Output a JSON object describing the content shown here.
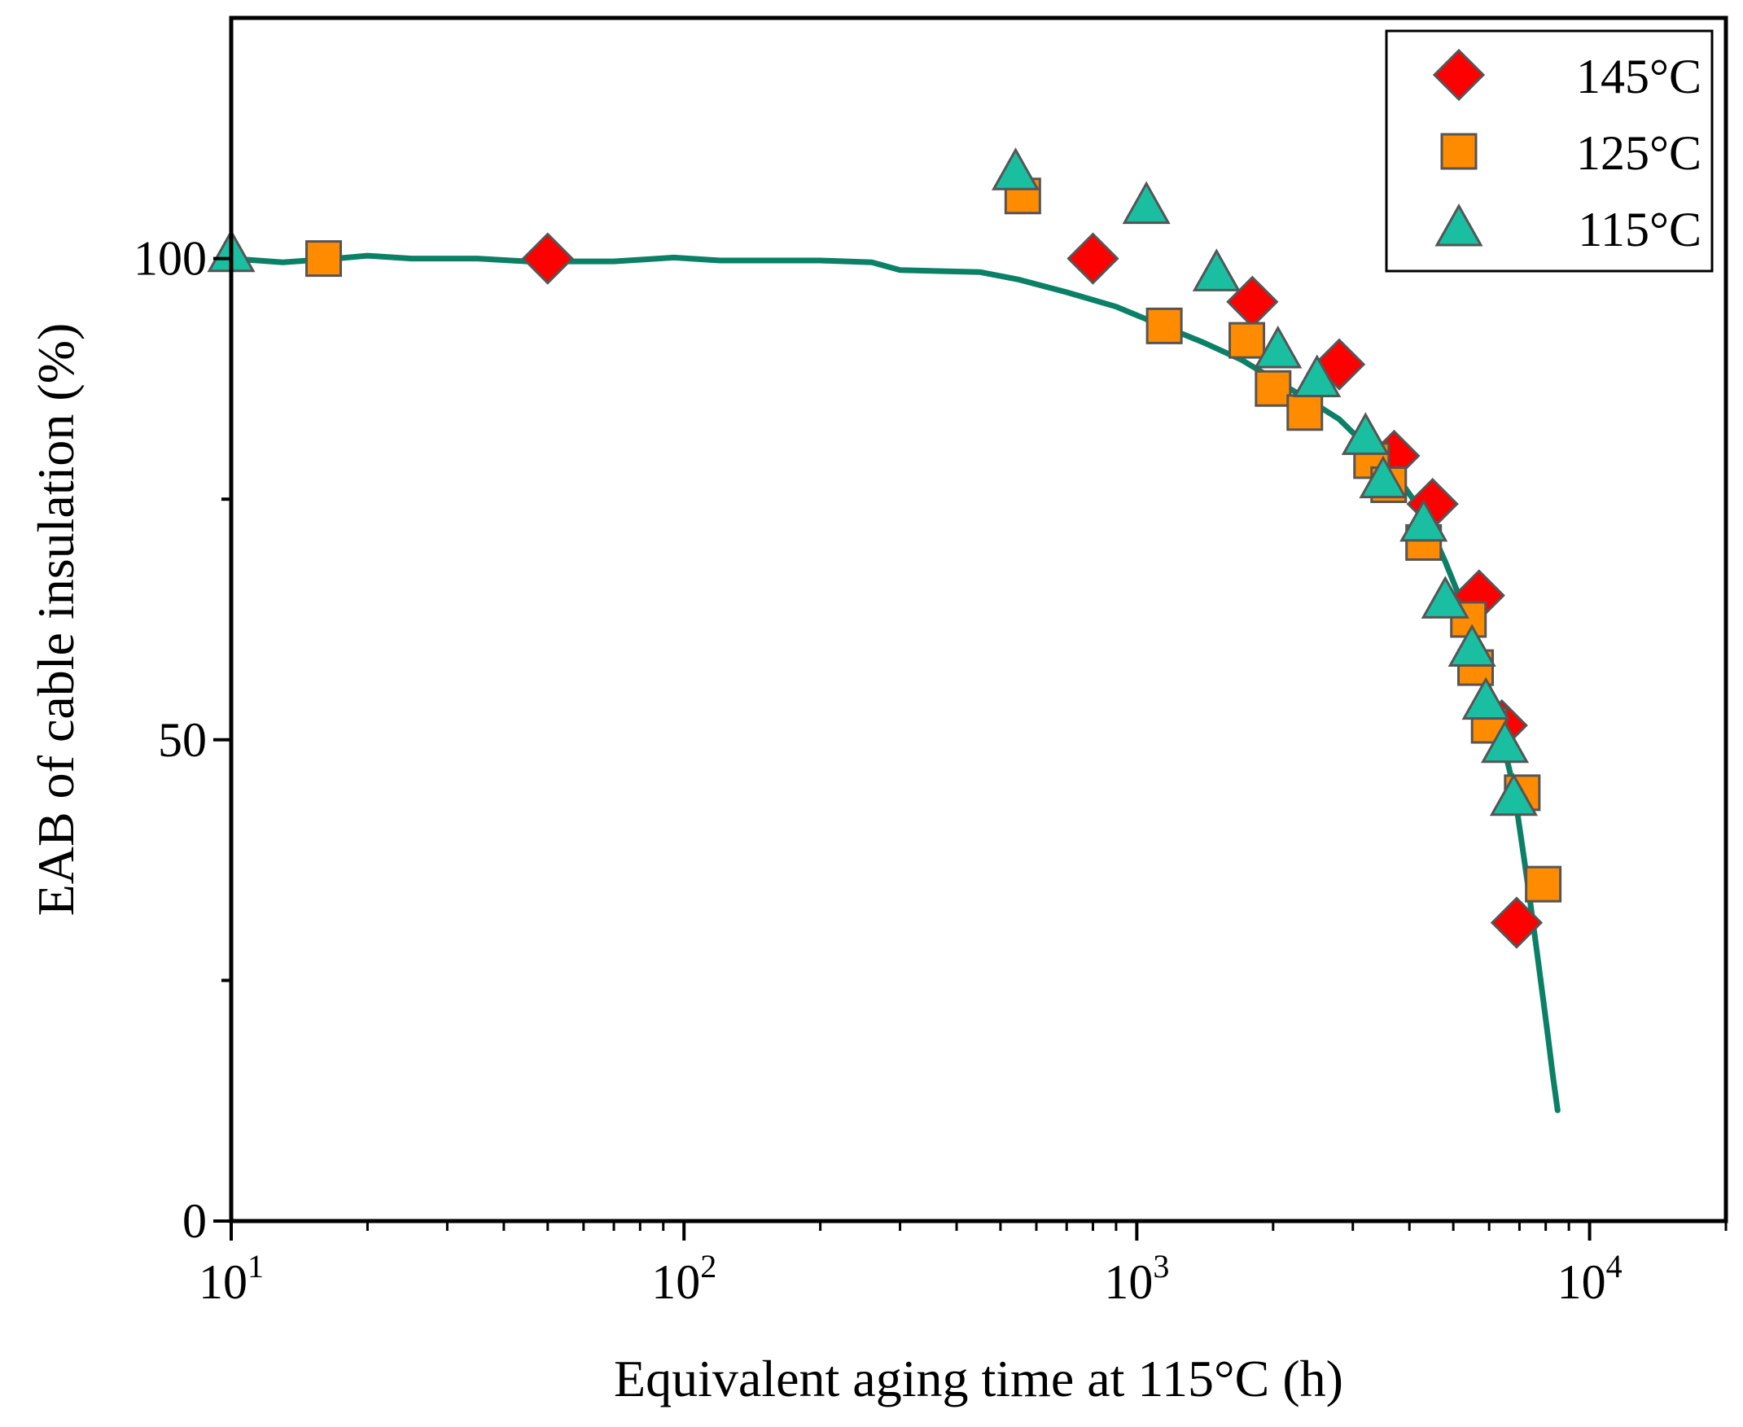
{
  "colors": {
    "curve": "#0a8066",
    "s145": "#ff0000",
    "s125": "#ff8c00",
    "s115": "#19bfa0",
    "marker_stroke": "#555555"
  },
  "chart_data": {
    "type": "scatter",
    "xlabel": "Equivalent aging time at 115°C (h)",
    "ylabel": "EAB of cable insulation (%)",
    "xscale": "log",
    "xlim": [
      10,
      20000
    ],
    "ylim": [
      0,
      125
    ],
    "grid": false,
    "legend_position": "top-right",
    "x_ticks": [
      {
        "value": 10,
        "base": "10",
        "exp": "1"
      },
      {
        "value": 100,
        "base": "10",
        "exp": "2"
      },
      {
        "value": 1000,
        "base": "10",
        "exp": "3"
      },
      {
        "value": 10000,
        "base": "10",
        "exp": "4"
      }
    ],
    "y_ticks": [
      {
        "value": 0,
        "label": "0"
      },
      {
        "value": 25,
        "label": ""
      },
      {
        "value": 50,
        "label": "50"
      },
      {
        "value": 75,
        "label": ""
      },
      {
        "value": 100,
        "label": "100"
      }
    ],
    "series": [
      {
        "name": "145°C",
        "marker": "diamond",
        "color_key": "s145",
        "points": [
          [
            50,
            100
          ],
          [
            800,
            100
          ],
          [
            1800,
            95.5
          ],
          [
            2800,
            89
          ],
          [
            3700,
            79.5
          ],
          [
            4500,
            74.5
          ],
          [
            5700,
            65
          ],
          [
            6400,
            51.5
          ],
          [
            6900,
            31
          ]
        ]
      },
      {
        "name": "125°C",
        "marker": "square",
        "color_key": "s125",
        "points": [
          [
            16,
            100
          ],
          [
            560,
            106.5
          ],
          [
            1150,
            93
          ],
          [
            1750,
            91.5
          ],
          [
            2000,
            86.5
          ],
          [
            2350,
            84
          ],
          [
            3300,
            79
          ],
          [
            3600,
            76.5
          ],
          [
            4300,
            70.5
          ],
          [
            5400,
            62.5
          ],
          [
            5600,
            57.5
          ],
          [
            6000,
            51.5
          ],
          [
            7100,
            44.5
          ],
          [
            7900,
            35
          ]
        ]
      },
      {
        "name": "115°C",
        "marker": "triangle",
        "color_key": "s115",
        "points": [
          [
            10,
            100.5
          ],
          [
            540,
            109
          ],
          [
            1050,
            105.5
          ],
          [
            1500,
            98.5
          ],
          [
            2050,
            90.5
          ],
          [
            2500,
            87.5
          ],
          [
            3200,
            81.5
          ],
          [
            3500,
            77
          ],
          [
            4300,
            72.5
          ],
          [
            4800,
            64.5
          ],
          [
            5500,
            59.5
          ],
          [
            5900,
            54
          ],
          [
            6500,
            49.5
          ],
          [
            6800,
            44
          ]
        ]
      }
    ],
    "fit_curve": {
      "color_key": "curve",
      "points": [
        [
          10,
          100
        ],
        [
          13,
          99.6
        ],
        [
          17,
          100
        ],
        [
          20,
          100.3
        ],
        [
          25,
          100
        ],
        [
          35,
          100
        ],
        [
          45,
          99.7
        ],
        [
          70,
          99.7
        ],
        [
          95,
          100.1
        ],
        [
          120,
          99.8
        ],
        [
          200,
          99.8
        ],
        [
          260,
          99.6
        ],
        [
          300,
          98.8
        ],
        [
          450,
          98.6
        ],
        [
          550,
          97.8
        ],
        [
          700,
          96.5
        ],
        [
          900,
          95
        ],
        [
          1100,
          93.3
        ],
        [
          1400,
          91.3
        ],
        [
          1700,
          89.5
        ],
        [
          2000,
          87.5
        ],
        [
          2400,
          85.3
        ],
        [
          2800,
          83.3
        ],
        [
          3300,
          80
        ],
        [
          3800,
          77
        ],
        [
          4300,
          73.5
        ],
        [
          4800,
          68.5
        ],
        [
          5300,
          63.5
        ],
        [
          5800,
          58
        ],
        [
          6300,
          51.5
        ],
        [
          6800,
          45
        ],
        [
          7100,
          39
        ],
        [
          7300,
          35
        ],
        [
          7500,
          31
        ],
        [
          7700,
          27
        ],
        [
          7900,
          23
        ],
        [
          8100,
          19
        ],
        [
          8300,
          15
        ],
        [
          8500,
          11.5
        ]
      ]
    }
  }
}
